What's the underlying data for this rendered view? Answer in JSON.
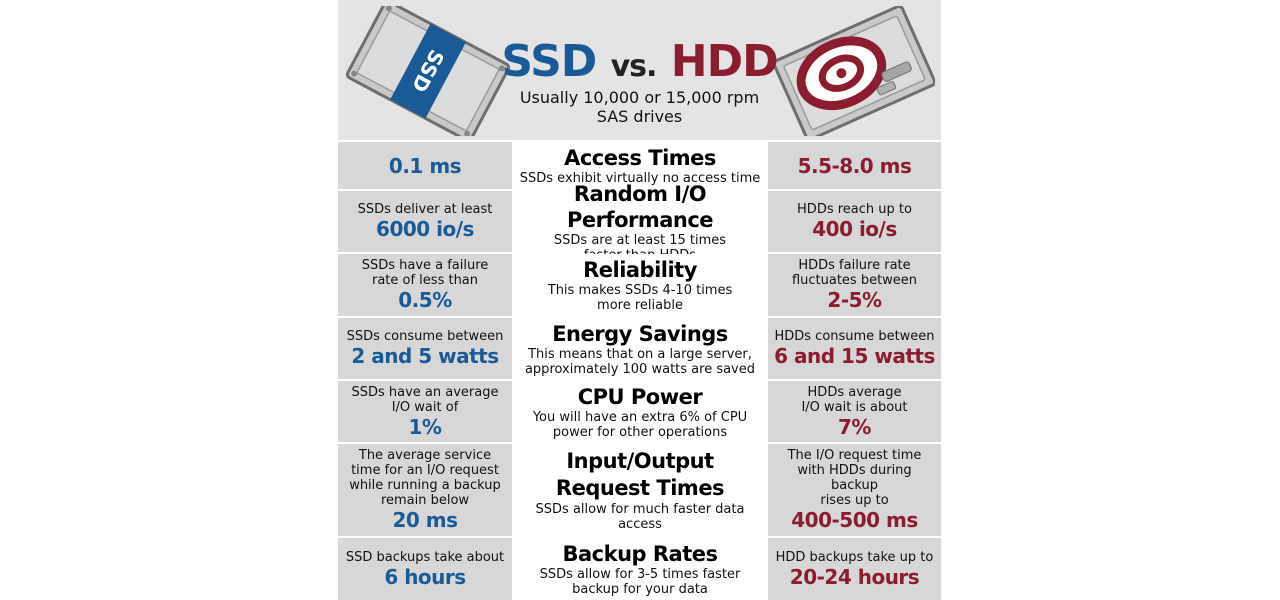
{
  "header": {
    "title_ssd": "SSD",
    "title_vs": "vs.",
    "title_hdd": "HDD",
    "subtitle_line1": "Usually 10,000 or 15,000 rpm",
    "subtitle_line2": "SAS drives",
    "ssd_drive_label": "SSD"
  },
  "colors": {
    "ssd_accent": "#1a5b97",
    "hdd_accent": "#8c1c30",
    "row_gray": "#d7d7d7",
    "header_gray": "#e4e4e4"
  },
  "rows": [
    {
      "heading": "Access Times",
      "sub": "SSDs exhibit virtually no access time",
      "ssd_value": "0.1 ms",
      "hdd_value": "5.5-8.0 ms"
    },
    {
      "heading": "Random I/O Performance",
      "sub_line1": "SSDs are at least 15 times",
      "sub_line2": "faster than HDDs",
      "ssd_note": "SSDs deliver at least",
      "ssd_value": "6000 io/s",
      "hdd_note": "HDDs reach up to",
      "hdd_value": "400 io/s"
    },
    {
      "heading": "Reliability",
      "sub_line1": "This makes SSDs 4-10 times",
      "sub_line2": "more reliable",
      "ssd_note_line1": "SSDs have a failure",
      "ssd_note_line2": "rate of less than",
      "ssd_value": "0.5%",
      "hdd_note_line1": "HDDs failure rate",
      "hdd_note_line2": "fluctuates between",
      "hdd_value": "2-5%"
    },
    {
      "heading": "Energy Savings",
      "sub_line1": "This means that on a large server,",
      "sub_line2": "approximately 100 watts are saved",
      "ssd_note": "SSDs consume between",
      "ssd_value": "2 and 5 watts",
      "hdd_note": "HDDs consume between",
      "hdd_value": "6 and 15 watts"
    },
    {
      "heading": "CPU Power",
      "sub_line1": "You will have an extra 6% of CPU",
      "sub_line2": "power for other operations",
      "ssd_note_line1": "SSDs have an average",
      "ssd_note_line2": "I/O wait of",
      "ssd_value": "1%",
      "hdd_note_line1": "HDDs average",
      "hdd_note_line2": "I/O wait is about",
      "hdd_value": "7%"
    },
    {
      "heading_line1": "Input/Output",
      "heading_line2": "Request Times",
      "sub": "SSDs allow for much faster data access",
      "ssd_note_line1": "The average service",
      "ssd_note_line2": "time for an I/O request",
      "ssd_note_line3": "while running a backup",
      "ssd_note_line4": "remain below",
      "ssd_value": "20 ms",
      "hdd_note_line1": "The I/O request time",
      "hdd_note_line2": "with HDDs during backup",
      "hdd_note_line3": "rises up to",
      "hdd_value": "400-500 ms"
    },
    {
      "heading": "Backup Rates",
      "sub_line1": "SSDs allow for 3-5 times faster",
      "sub_line2": "backup for your data",
      "ssd_note": "SSD backups take about",
      "ssd_value": "6 hours",
      "hdd_note": "HDD backups take up to",
      "hdd_value": "20-24 hours"
    }
  ]
}
